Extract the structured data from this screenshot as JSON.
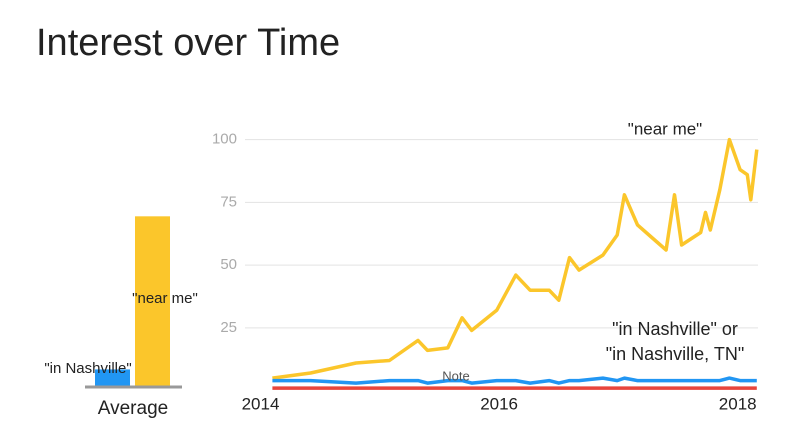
{
  "header": {
    "title": "Interest over Time"
  },
  "chart_data": [
    {
      "type": "bar",
      "categories": [
        "\"in Nashville\"",
        "\"near me\""
      ],
      "values": [
        7,
        68
      ],
      "colors": [
        "#2196f3",
        "#fbc62b"
      ],
      "xlabel": "Average",
      "ylim": [
        0,
        100
      ]
    },
    {
      "type": "line",
      "x": [
        2014.1,
        2014.42,
        2014.8,
        2015.08,
        2015.32,
        2015.4,
        2015.57,
        2015.69,
        2015.77,
        2015.98,
        2016.14,
        2016.26,
        2016.42,
        2016.5,
        2016.59,
        2016.67,
        2016.87,
        2016.99,
        2017.05,
        2017.16,
        2017.28,
        2017.4,
        2017.47,
        2017.53,
        2017.69,
        2017.73,
        2017.77,
        2017.85,
        2017.93,
        2018.02,
        2018.08,
        2018.11,
        2018.16
      ],
      "series": [
        {
          "name": "\"near me\"",
          "color": "#fbc62b",
          "values": [
            5,
            7,
            11,
            12,
            20,
            16,
            17,
            29,
            24,
            32,
            46,
            40,
            40,
            36,
            53,
            48,
            54,
            62,
            78,
            66,
            61,
            56,
            78,
            58,
            63,
            71,
            64,
            80,
            100,
            88,
            86,
            76,
            96
          ]
        },
        {
          "color": "#2196f3",
          "values": [
            4,
            4,
            3,
            4,
            4,
            3,
            4,
            4,
            3,
            4,
            4,
            3,
            4,
            3,
            4,
            4,
            5,
            4,
            5,
            4,
            4,
            4,
            4,
            4,
            4,
            4,
            4,
            4,
            5,
            4,
            4,
            4,
            4
          ]
        },
        {
          "color": "#e8453c",
          "values": [
            1,
            1,
            1,
            1,
            1,
            1,
            1,
            1,
            1,
            1,
            1,
            1,
            1,
            1,
            1,
            1,
            1,
            1,
            1,
            1,
            1,
            1,
            1,
            1,
            1,
            1,
            1,
            1,
            1,
            1,
            1,
            1,
            1
          ]
        }
      ],
      "xlim": [
        2013.87,
        2018.17
      ],
      "xticks": [
        2014,
        2016,
        2018
      ],
      "ylim": [
        0,
        100
      ],
      "yticks": [
        25,
        50,
        75,
        100
      ],
      "grid": true,
      "annotations": [
        "\"in  Nashville\" or",
        "\"in  Nashville, TN\"",
        "Note"
      ]
    }
  ]
}
